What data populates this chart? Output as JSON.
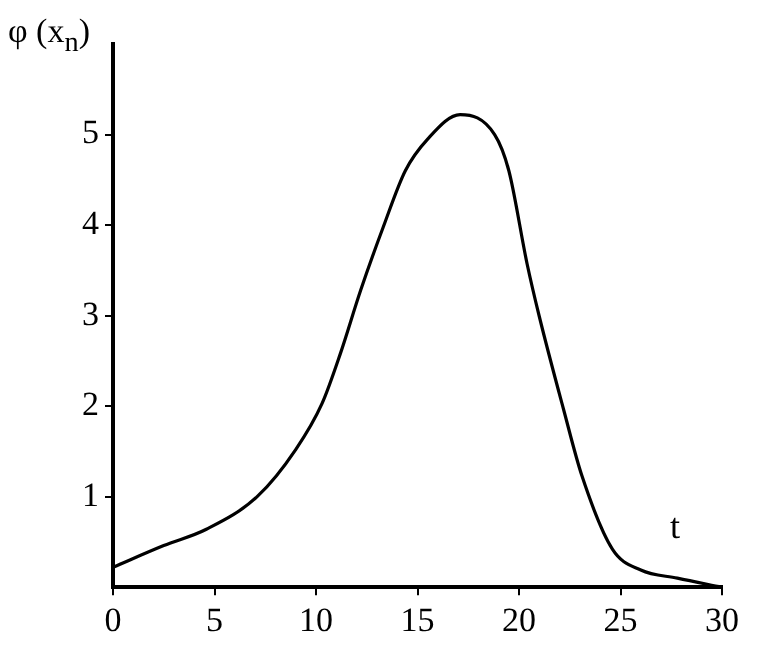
{
  "chart_data": {
    "type": "line",
    "ylabel": "φ (x$_{n}$)",
    "xlabel": "t",
    "x": [
      0,
      2.5,
      4.6,
      7.1,
      9.0,
      10.3,
      11.2,
      12.2,
      13.3,
      14.4,
      15.5,
      17.1,
      18.8,
      19.5,
      20.4,
      21.0,
      22.2,
      23.1,
      24.6,
      26.0,
      27.8,
      30
    ],
    "series": [
      {
        "color": "#000000",
        "values": [
          0.22,
          0.46,
          0.64,
          1.0,
          1.52,
          2.03,
          2.58,
          3.28,
          3.97,
          4.6,
          4.95,
          5.22,
          5.0,
          4.6,
          3.57,
          2.99,
          1.96,
          1.23,
          0.42,
          0.19,
          0.1,
          0
        ]
      }
    ],
    "xlim": [
      0,
      30
    ],
    "xticks": [
      0,
      5,
      10,
      15,
      20,
      25,
      30
    ],
    "ylim": [
      0,
      6
    ],
    "yticks": [
      1,
      2,
      3,
      4,
      5
    ],
    "grid": false,
    "legend": false,
    "marker": "none",
    "line_style": "solid"
  }
}
